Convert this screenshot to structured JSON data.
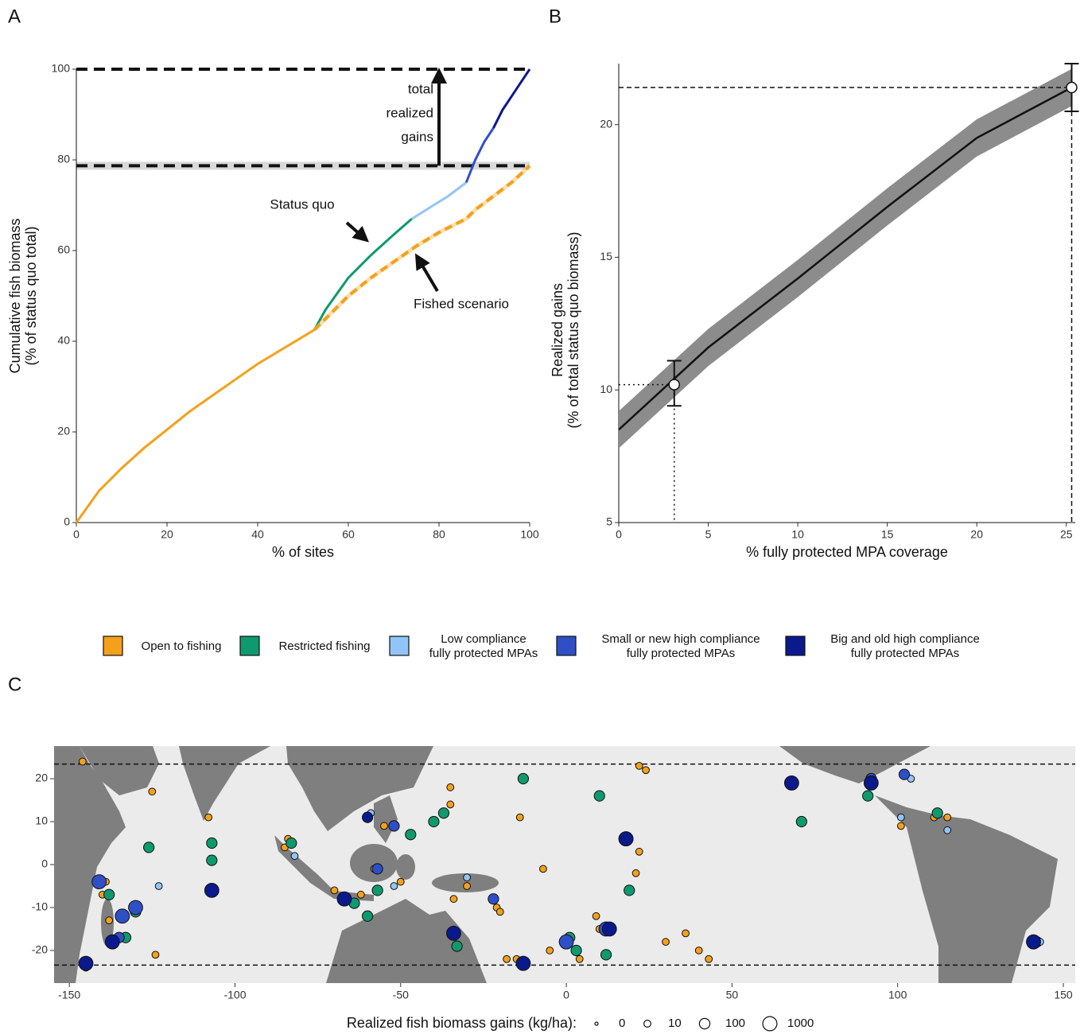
{
  "chart_data": [
    {
      "type": "line",
      "panel_label": "A",
      "x_label": "% of sites",
      "y_label": [
        "Cumulative fish biomass",
        "(% of status quo total)"
      ],
      "xlim": [
        0,
        100
      ],
      "ylim": [
        0,
        100
      ],
      "xticks": [
        0,
        20,
        40,
        60,
        80,
        100
      ],
      "yticks": [
        0,
        20,
        40,
        60,
        80,
        100
      ],
      "hlines": [
        100,
        78.7
      ],
      "series": [
        {
          "color": "#F5A01A",
          "x": [
            0,
            5,
            10,
            15,
            20,
            25,
            30,
            35,
            40,
            45,
            50,
            52.5
          ],
          "values": [
            0,
            7,
            12,
            16.5,
            20.5,
            24.5,
            28,
            31.5,
            35,
            38,
            41,
            42.5
          ]
        },
        {
          "color": "#0E9A6E",
          "x": [
            52.5,
            55,
            60,
            65,
            70,
            74
          ],
          "values": [
            42.5,
            47,
            54,
            59,
            63.5,
            67
          ]
        },
        {
          "color": "#92C5F7",
          "x": [
            74,
            78,
            82,
            86
          ],
          "values": [
            67,
            69.5,
            72,
            75
          ]
        },
        {
          "color": "#2E4FC6",
          "x": [
            86,
            88,
            90,
            92
          ],
          "values": [
            75,
            80,
            84,
            87
          ]
        },
        {
          "color": "#0A1A8C",
          "x": [
            92,
            94,
            96,
            98,
            100
          ],
          "values": [
            87,
            91,
            94,
            97,
            100
          ]
        },
        {
          "color": "#F5A01A",
          "style": "dashed",
          "x": [
            52.5,
            56,
            60,
            65,
            70,
            75,
            80,
            86,
            88,
            92,
            96,
            100
          ],
          "values": [
            42.5,
            46,
            50,
            54,
            57.5,
            61,
            64,
            67,
            69,
            72,
            75,
            78.7
          ]
        }
      ],
      "gains_arrow_x": 80,
      "annotations": {
        "gains": [
          "total",
          "realized",
          "gains"
        ],
        "status_quo": "Status quo",
        "fished": "Fished scenario"
      }
    },
    {
      "type": "line",
      "panel_label": "B",
      "x_label": "% fully protected MPA coverage",
      "y_label": [
        "Realized gains",
        "(% of total status quo biomass)"
      ],
      "xlim": [
        0,
        25.5
      ],
      "ylim": [
        5,
        22.3
      ],
      "xticks": [
        0,
        5,
        10,
        15,
        20,
        25
      ],
      "yticks": [
        5,
        10,
        15,
        20
      ],
      "x": [
        0,
        5,
        10,
        15,
        20,
        25.3
      ],
      "values": [
        8.5,
        11.6,
        14.2,
        16.9,
        19.5,
        21.4
      ],
      "band_lower": [
        7.8,
        10.9,
        13.5,
        16.2,
        18.8,
        20.7
      ],
      "band_upper": [
        9.2,
        12.3,
        14.9,
        17.6,
        20.2,
        22.1
      ],
      "points": {
        "x": [
          3.1,
          25.3
        ],
        "values": [
          10.2,
          21.4
        ],
        "lower": [
          9.4,
          20.5
        ],
        "upper": [
          11.1,
          22.3
        ],
        "guide_style": [
          "dotted",
          "dashed"
        ]
      }
    },
    {
      "type": "scatter",
      "panel_label": "C",
      "xlim": [
        -154.6,
        153.6
      ],
      "ylim": [
        -27.6,
        27.6
      ],
      "xticks": [
        -150,
        -100,
        -50,
        0,
        50,
        100,
        150
      ],
      "yticks": [
        -20,
        -10,
        0,
        10,
        20
      ],
      "hlines": [
        23.4,
        -23.4
      ],
      "size_legend": {
        "title": "Realized fish biomass gains (kg/ha):",
        "values": [
          0,
          10,
          100,
          1000
        ]
      },
      "series": [
        {
          "color": "#F5A01A",
          "x": [
            -146,
            -125,
            -108,
            -140,
            -139,
            -138,
            -145,
            -124,
            -85,
            -84,
            -60,
            -55,
            -58,
            -50,
            -35,
            -35,
            -34,
            -30,
            -21,
            -20,
            -14,
            -7,
            -15,
            -12,
            -18,
            -5,
            22,
            24,
            22,
            21,
            9,
            10,
            4,
            30,
            36,
            40,
            43,
            -62,
            -70,
            115,
            111,
            101
          ],
          "values": [
            24,
            17,
            11,
            -7,
            -4,
            -13,
            -24,
            -21,
            4,
            6,
            11,
            9,
            -1,
            -4,
            18,
            14,
            -8,
            -5,
            -10,
            -11,
            11,
            -1,
            -22,
            -23,
            -22,
            -20,
            23,
            22,
            3,
            -2,
            -12,
            -15,
            -22,
            -18,
            -16,
            -20,
            -22,
            -7,
            -6,
            11,
            11,
            9
          ],
          "sizes": [
            10,
            10,
            10,
            10,
            10,
            10,
            10,
            10,
            10,
            10,
            10,
            10,
            10,
            10,
            10,
            10,
            10,
            10,
            10,
            10,
            10,
            10,
            10,
            10,
            10,
            10,
            10,
            10,
            10,
            10,
            10,
            10,
            10,
            10,
            10,
            10,
            10,
            10,
            10,
            10,
            10,
            10
          ]
        },
        {
          "color": "#0E9A6E",
          "x": [
            -126,
            -107,
            -107,
            -130,
            -138,
            -133,
            -83,
            -60,
            -57,
            -47,
            -40,
            -37,
            -13,
            10,
            19,
            1,
            12,
            3,
            -33,
            71,
            91,
            112,
            -64,
            142
          ],
          "values": [
            4,
            5,
            1,
            -11,
            -7,
            -17,
            5,
            -12,
            -6,
            7,
            10,
            12,
            20,
            16,
            -6,
            -17,
            -21,
            -20,
            -19,
            10,
            16,
            12,
            -9,
            -18
          ],
          "sizes": [
            100,
            100,
            100,
            100,
            100,
            100,
            100,
            100,
            100,
            100,
            100,
            100,
            100,
            100,
            100,
            100,
            100,
            100,
            100,
            100,
            100,
            100,
            100,
            100
          ]
        },
        {
          "color": "#92C5F7",
          "x": [
            -123,
            -82,
            -59,
            -52,
            -30,
            101,
            104,
            115,
            143
          ],
          "values": [
            -5,
            2,
            12,
            -5,
            -3,
            11,
            20,
            8,
            -18
          ],
          "sizes": [
            10,
            10,
            10,
            10,
            10,
            10,
            10,
            10,
            10
          ]
        },
        {
          "color": "#2E4FC6",
          "x": [
            -141,
            -134,
            -130,
            -57,
            -22,
            0,
            18,
            12,
            -135,
            92,
            102,
            -52
          ],
          "values": [
            -4,
            -12,
            -10,
            -1,
            -8,
            -18,
            6,
            -15,
            -17,
            20,
            21,
            9
          ],
          "sizes": [
            1000,
            1000,
            1000,
            100,
            100,
            1000,
            1000,
            1000,
            100,
            100,
            100,
            100
          ]
        },
        {
          "color": "#0A1A8C",
          "x": [
            -107,
            -145,
            -137,
            -34,
            -13,
            -67,
            -60,
            68,
            18,
            13,
            92,
            141
          ],
          "values": [
            -6,
            -23,
            -18,
            -16,
            -23,
            -8,
            11,
            19,
            6,
            -15,
            19,
            -18
          ],
          "sizes": [
            1000,
            1000,
            1000,
            1000,
            1000,
            1000,
            100,
            1000,
            1000,
            1000,
            1000,
            1000
          ]
        }
      ]
    }
  ],
  "legend": {
    "items": [
      {
        "name": [
          "Open to fishing"
        ],
        "color": "#F5A01A"
      },
      {
        "name": [
          "Restricted fishing"
        ],
        "color": "#0E9A6E"
      },
      {
        "name": [
          "Low compliance",
          "fully protected MPAs"
        ],
        "color": "#92C5F7"
      },
      {
        "name": [
          "Small or new high compliance",
          "fully protected MPAs"
        ],
        "color": "#2E4FC6"
      },
      {
        "name": [
          "Big and old high compliance",
          "fully protected MPAs"
        ],
        "color": "#0A1A8C"
      }
    ]
  }
}
